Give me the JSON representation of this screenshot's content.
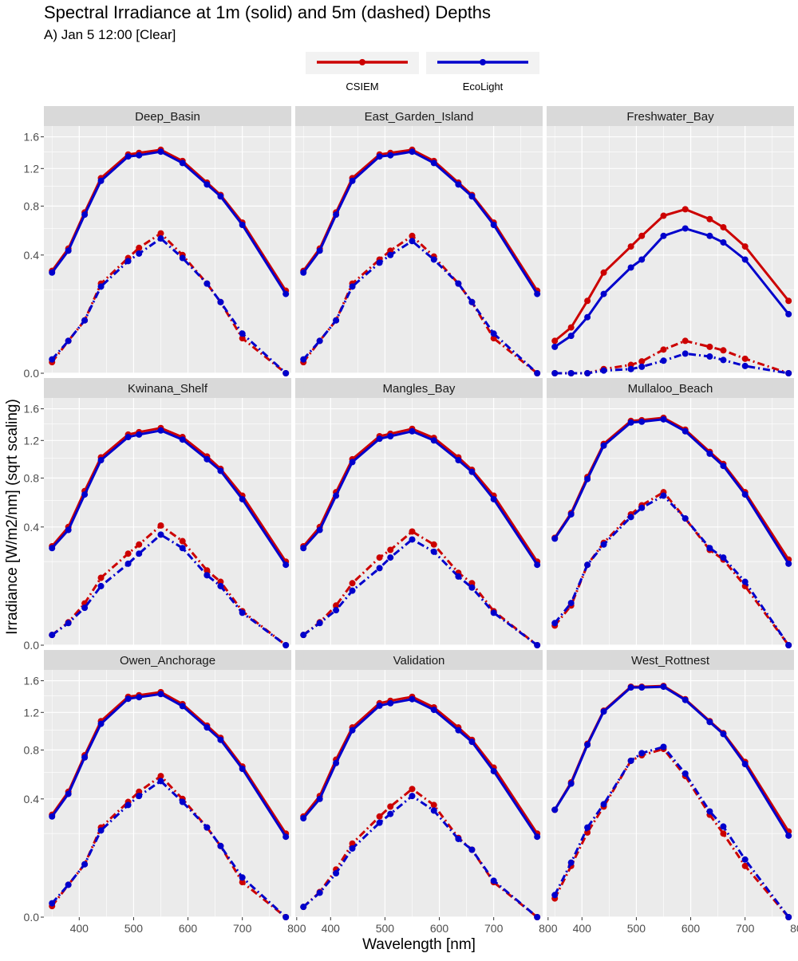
{
  "chart_data": {
    "type": "line",
    "title": "Spectral Irradiance at 1m (solid) and 5m (dashed) Depths",
    "subtitle": "A) Jan 5 12:00 [Clear]",
    "xlabel": "Wavelength [nm]",
    "ylabel": "Irradiance [W/m2/nm] (sqrt scaling)",
    "y_scale": "sqrt",
    "xlim": [
      335,
      790
    ],
    "ylim": [
      0,
      1.75
    ],
    "x_ticks": [
      400,
      500,
      600,
      700,
      800
    ],
    "x_tick_labels": [
      "400",
      "500",
      "600",
      "700",
      "800"
    ],
    "y_ticks": [
      0,
      0.4,
      0.8,
      1.2,
      1.6
    ],
    "y_tick_labels": [
      "0.0",
      "0.4",
      "0.8",
      "1.2",
      "1.6"
    ],
    "legend": {
      "position": "top",
      "entries": [
        {
          "label": "CSIEM",
          "color": "#cc0000"
        },
        {
          "label": "EcoLight",
          "color": "#0000cc"
        }
      ]
    },
    "depth_styles": [
      {
        "depth": "1m",
        "linetype": "solid"
      },
      {
        "depth": "5m",
        "linetype": "dashed"
      }
    ],
    "wavelengths": [
      350,
      380,
      410,
      440,
      490,
      510,
      550,
      590,
      635,
      660,
      700,
      780
    ],
    "panels": [
      {
        "name": "Deep_Basin",
        "series": [
          {
            "model": "CSIEM",
            "depth": "1m",
            "values": [
              0.3,
              0.445,
              0.74,
              1.09,
              1.37,
              1.39,
              1.43,
              1.29,
              1.04,
              0.91,
              0.65,
              0.195
            ]
          },
          {
            "model": "EcoLight",
            "depth": "1m",
            "values": [
              0.29,
              0.43,
              0.72,
              1.06,
              1.345,
              1.36,
              1.405,
              1.265,
              1.02,
              0.895,
              0.63,
              0.18
            ]
          },
          {
            "model": "CSIEM",
            "depth": "5m",
            "values": [
              0.0035,
              0.03,
              0.08,
              0.23,
              0.38,
              0.45,
              0.56,
              0.4,
              0.23,
              0.145,
              0.035,
              0.0
            ]
          },
          {
            "model": "EcoLight",
            "depth": "5m",
            "values": [
              0.0055,
              0.03,
              0.08,
              0.215,
              0.36,
              0.41,
              0.52,
              0.38,
              0.23,
              0.145,
              0.045,
              0.0
            ]
          }
        ]
      },
      {
        "name": "East_Garden_Island",
        "series": [
          {
            "model": "CSIEM",
            "depth": "1m",
            "values": [
              0.3,
              0.445,
              0.74,
              1.09,
              1.37,
              1.39,
              1.43,
              1.29,
              1.04,
              0.91,
              0.65,
              0.195
            ]
          },
          {
            "model": "EcoLight",
            "depth": "1m",
            "values": [
              0.29,
              0.43,
              0.72,
              1.06,
              1.345,
              1.36,
              1.405,
              1.265,
              1.02,
              0.895,
              0.63,
              0.18
            ]
          },
          {
            "model": "CSIEM",
            "depth": "5m",
            "values": [
              0.0035,
              0.03,
              0.08,
              0.23,
              0.37,
              0.43,
              0.54,
              0.39,
              0.23,
              0.145,
              0.035,
              0.0
            ]
          },
          {
            "model": "EcoLight",
            "depth": "5m",
            "values": [
              0.0055,
              0.03,
              0.08,
              0.215,
              0.35,
              0.4,
              0.5,
              0.37,
              0.23,
              0.145,
              0.045,
              0.0
            ]
          }
        ]
      },
      {
        "name": "Freshwater_Bay",
        "series": [
          {
            "model": "CSIEM",
            "depth": "1m",
            "values": [
              0.03,
              0.06,
              0.15,
              0.29,
              0.46,
              0.54,
              0.71,
              0.77,
              0.68,
              0.61,
              0.46,
              0.15
            ]
          },
          {
            "model": "EcoLight",
            "depth": "1m",
            "values": [
              0.02,
              0.04,
              0.09,
              0.18,
              0.32,
              0.37,
              0.54,
              0.6,
              0.54,
              0.49,
              0.37,
              0.1
            ]
          },
          {
            "model": "CSIEM",
            "depth": "5m",
            "values": [
              0.0,
              0.0,
              0.0,
              0.0005,
              0.002,
              0.004,
              0.016,
              0.03,
              0.02,
              0.015,
              0.006,
              0.0
            ]
          },
          {
            "model": "EcoLight",
            "depth": "5m",
            "values": [
              0.0,
              0.0,
              0.0,
              0.0002,
              0.0005,
              0.0012,
              0.0045,
              0.011,
              0.008,
              0.005,
              0.0015,
              0.0
            ]
          }
        ]
      },
      {
        "name": "Kwinana_Shelf",
        "series": [
          {
            "model": "CSIEM",
            "depth": "1m",
            "values": [
              0.28,
              0.4,
              0.68,
              1.01,
              1.27,
              1.3,
              1.35,
              1.24,
              1.02,
              0.89,
              0.64,
              0.2
            ]
          },
          {
            "model": "EcoLight",
            "depth": "1m",
            "values": [
              0.27,
              0.38,
              0.65,
              0.98,
              1.24,
              1.27,
              1.32,
              1.21,
              0.99,
              0.87,
              0.61,
              0.185
            ]
          },
          {
            "model": "CSIEM",
            "depth": "5m",
            "values": [
              0.003,
              0.015,
              0.05,
              0.13,
              0.24,
              0.29,
              0.41,
              0.31,
              0.16,
              0.115,
              0.033,
              0.0
            ]
          },
          {
            "model": "EcoLight",
            "depth": "5m",
            "values": [
              0.003,
              0.014,
              0.04,
              0.1,
              0.19,
              0.24,
              0.35,
              0.27,
              0.14,
              0.1,
              0.03,
              0.0
            ]
          }
        ]
      },
      {
        "name": "Mangles_Bay",
        "series": [
          {
            "model": "CSIEM",
            "depth": "1m",
            "values": [
              0.28,
              0.4,
              0.67,
              0.99,
              1.25,
              1.28,
              1.34,
              1.23,
              1.01,
              0.88,
              0.64,
              0.2
            ]
          },
          {
            "model": "EcoLight",
            "depth": "1m",
            "values": [
              0.27,
              0.38,
              0.64,
              0.96,
              1.22,
              1.25,
              1.31,
              1.2,
              0.98,
              0.86,
              0.61,
              0.185
            ]
          },
          {
            "model": "CSIEM",
            "depth": "5m",
            "values": [
              0.003,
              0.015,
              0.045,
              0.11,
              0.22,
              0.26,
              0.37,
              0.29,
              0.15,
              0.11,
              0.033,
              0.0
            ]
          },
          {
            "model": "EcoLight",
            "depth": "5m",
            "values": [
              0.003,
              0.014,
              0.035,
              0.085,
              0.17,
              0.22,
              0.32,
              0.25,
              0.135,
              0.095,
              0.03,
              0.0
            ]
          }
        ]
      },
      {
        "name": "Mullaloo_Beach",
        "series": [
          {
            "model": "CSIEM",
            "depth": "1m",
            "values": [
              0.33,
              0.5,
              0.81,
              1.16,
              1.44,
              1.45,
              1.48,
              1.33,
              1.07,
              0.94,
              0.67,
              0.21
            ]
          },
          {
            "model": "EcoLight",
            "depth": "1m",
            "values": [
              0.325,
              0.49,
              0.79,
              1.14,
              1.42,
              1.43,
              1.46,
              1.31,
              1.05,
              0.92,
              0.65,
              0.19
            ]
          },
          {
            "model": "CSIEM",
            "depth": "5m",
            "values": [
              0.011,
              0.045,
              0.185,
              0.3,
              0.49,
              0.56,
              0.67,
              0.46,
              0.26,
              0.21,
              0.1,
              0.0
            ]
          },
          {
            "model": "EcoLight",
            "depth": "5m",
            "values": [
              0.014,
              0.051,
              0.185,
              0.29,
              0.47,
              0.54,
              0.64,
              0.46,
              0.27,
              0.22,
              0.115,
              0.0
            ]
          }
        ]
      },
      {
        "name": "Owen_Anchorage",
        "series": [
          {
            "model": "CSIEM",
            "depth": "1m",
            "values": [
              0.3,
              0.45,
              0.75,
              1.1,
              1.39,
              1.41,
              1.45,
              1.3,
              1.05,
              0.92,
              0.65,
              0.2
            ]
          },
          {
            "model": "EcoLight",
            "depth": "1m",
            "values": [
              0.29,
              0.435,
              0.73,
              1.07,
              1.365,
              1.385,
              1.425,
              1.275,
              1.03,
              0.9,
              0.63,
              0.185
            ]
          },
          {
            "model": "CSIEM",
            "depth": "5m",
            "values": [
              0.0035,
              0.03,
              0.08,
              0.23,
              0.38,
              0.45,
              0.57,
              0.4,
              0.23,
              0.145,
              0.035,
              0.0
            ]
          },
          {
            "model": "EcoLight",
            "depth": "5m",
            "values": [
              0.0055,
              0.03,
              0.08,
              0.215,
              0.36,
              0.42,
              0.53,
              0.38,
              0.23,
              0.145,
              0.045,
              0.0
            ]
          }
        ]
      },
      {
        "name": "Validation",
        "series": [
          {
            "model": "CSIEM",
            "depth": "1m",
            "values": [
              0.29,
              0.42,
              0.71,
              1.03,
              1.31,
              1.34,
              1.39,
              1.26,
              1.03,
              0.9,
              0.64,
              0.2
            ]
          },
          {
            "model": "EcoLight",
            "depth": "1m",
            "values": [
              0.28,
              0.4,
              0.68,
              1.0,
              1.28,
              1.31,
              1.36,
              1.23,
              1.0,
              0.88,
              0.61,
              0.185
            ]
          },
          {
            "model": "CSIEM",
            "depth": "5m",
            "values": [
              0.003,
              0.018,
              0.065,
              0.155,
              0.29,
              0.35,
              0.47,
              0.36,
              0.18,
              0.13,
              0.035,
              0.0
            ]
          },
          {
            "model": "EcoLight",
            "depth": "5m",
            "values": [
              0.003,
              0.017,
              0.055,
              0.135,
              0.255,
              0.305,
              0.42,
              0.325,
              0.175,
              0.13,
              0.038,
              0.0
            ]
          }
        ]
      },
      {
        "name": "West_Rottnest",
        "series": [
          {
            "model": "CSIEM",
            "depth": "1m",
            "values": [
              0.33,
              0.52,
              0.86,
              1.22,
              1.52,
              1.52,
              1.53,
              1.36,
              1.1,
              0.97,
              0.69,
              0.21
            ]
          },
          {
            "model": "EcoLight",
            "depth": "1m",
            "values": [
              0.33,
              0.51,
              0.85,
              1.21,
              1.51,
              1.51,
              1.52,
              1.35,
              1.09,
              0.96,
              0.67,
              0.19
            ]
          },
          {
            "model": "CSIEM",
            "depth": "5m",
            "values": [
              0.01,
              0.075,
              0.205,
              0.35,
              0.7,
              0.75,
              0.81,
              0.57,
              0.3,
              0.2,
              0.075,
              0.0
            ]
          },
          {
            "model": "EcoLight",
            "depth": "5m",
            "values": [
              0.014,
              0.085,
              0.23,
              0.365,
              0.7,
              0.77,
              0.83,
              0.59,
              0.32,
              0.235,
              0.095,
              0.0
            ]
          }
        ]
      }
    ]
  }
}
